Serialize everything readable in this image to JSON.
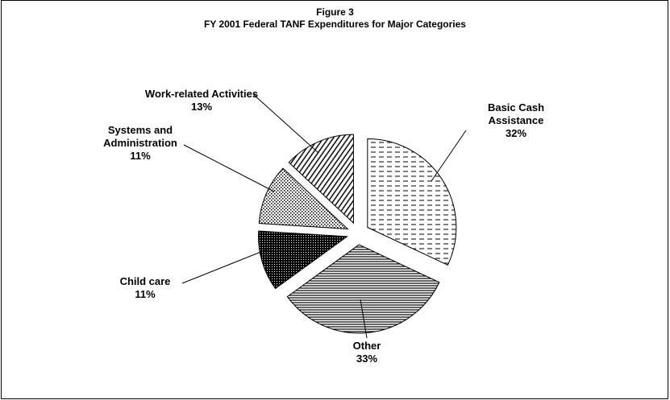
{
  "chart_data": {
    "type": "pie",
    "title": "Figure 3",
    "subtitle": "FY 2001 Federal TANF Expenditures for Major Categories",
    "categories": [
      "Basic Cash Assistance",
      "Other",
      "Child care",
      "Systems and Administration",
      "Work-related Activities"
    ],
    "values": [
      32,
      33,
      11,
      11,
      13
    ],
    "value_labels": [
      "32%",
      "33%",
      "11%",
      "11%",
      "13%"
    ],
    "color": "#000000"
  }
}
